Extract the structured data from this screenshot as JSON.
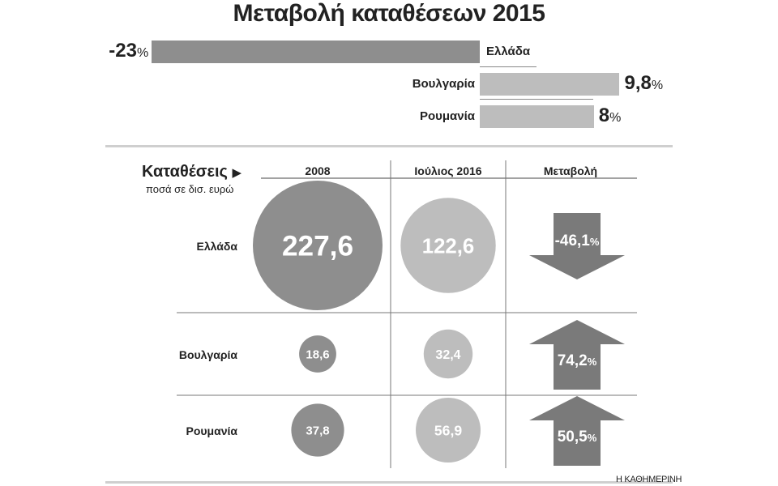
{
  "title": "Μεταβολή καταθέσεων 2015",
  "top_bars": {
    "percent_sign": "%",
    "items": [
      {
        "country": "Ελλάδα",
        "value": -23,
        "display": "-23",
        "color": "#8e8e8e"
      },
      {
        "country": "Βουλγαρία",
        "value": 9.8,
        "display": "9,8",
        "color": "#bdbdbd"
      },
      {
        "country": "Ρουμανία",
        "value": 8,
        "display": "8",
        "color": "#bdbdbd"
      }
    ]
  },
  "table": {
    "section_title": "Καταθέσεις",
    "section_subtitle": "ποσά σε δισ. ευρώ",
    "columns": [
      "2008",
      "Ιούλιος 2016",
      "Μεταβολή"
    ],
    "colors": {
      "col2008": "#8e8e8e",
      "col2016": "#bdbdbd",
      "arrow": "#7a7a7a"
    },
    "rows": [
      {
        "country": "Ελλάδα",
        "v2008": 227.6,
        "v2008_display": "227,6",
        "v2016": 122.6,
        "v2016_display": "122,6",
        "change": -46.1,
        "change_display": "-46,1",
        "change_unit": "%",
        "direction": "down"
      },
      {
        "country": "Βουλγαρία",
        "v2008": 18.6,
        "v2008_display": "18,6",
        "v2016": 32.4,
        "v2016_display": "32,4",
        "change": 74.2,
        "change_display": "74,2",
        "change_unit": "%",
        "direction": "up"
      },
      {
        "country": "Ρουμανία",
        "v2008": 37.8,
        "v2008_display": "37,8",
        "v2016": 56.9,
        "v2016_display": "56,9",
        "change": 50.5,
        "change_display": "50,5",
        "change_unit": "%",
        "direction": "up"
      }
    ]
  },
  "source": "Η ΚΑΘΗΜΕΡΙΝΗ",
  "chart_data": [
    {
      "type": "bar",
      "title": "Μεταβολή καταθέσεων 2015",
      "categories": [
        "Ελλάδα",
        "Βουλγαρία",
        "Ρουμανία"
      ],
      "values": [
        -23,
        9.8,
        8
      ],
      "unit": "%"
    },
    {
      "type": "table",
      "title": "Καταθέσεις",
      "subtitle": "ποσά σε δισ. ευρώ",
      "categories": [
        "Ελλάδα",
        "Βουλγαρία",
        "Ρουμανία"
      ],
      "columns": [
        "2008",
        "Ιούλιος 2016",
        "Μεταβολή"
      ],
      "series": [
        {
          "name": "2008",
          "values": [
            227.6,
            18.6,
            37.8
          ]
        },
        {
          "name": "Ιούλιος 2016",
          "values": [
            122.6,
            32.4,
            56.9
          ]
        },
        {
          "name": "Μεταβολή",
          "values": [
            -46.1,
            74.2,
            50.5
          ]
        }
      ]
    }
  ]
}
